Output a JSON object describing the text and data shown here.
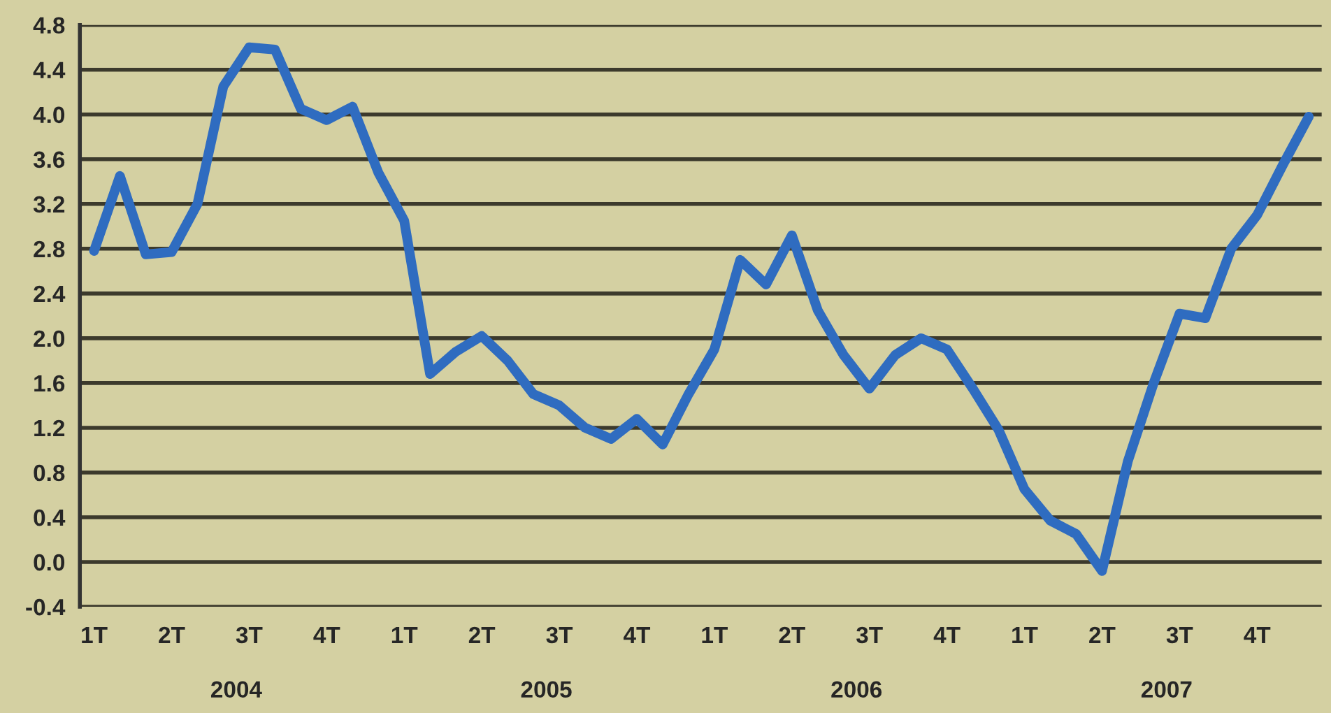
{
  "chart_data": {
    "type": "line",
    "categories": [
      "1T",
      null,
      null,
      "2T",
      null,
      null,
      "3T",
      null,
      null,
      "4T",
      null,
      null,
      "1T",
      null,
      null,
      "2T",
      null,
      null,
      "3T",
      null,
      null,
      "4T",
      null,
      null,
      "1T",
      null,
      null,
      "2T",
      null,
      null,
      "3T",
      null,
      null,
      "4T",
      null,
      null,
      "1T",
      null,
      null,
      "2T",
      null,
      null,
      "3T",
      null,
      null,
      "4T",
      null,
      null
    ],
    "series": [
      {
        "color": "#2f6cc0",
        "values": [
          2.78,
          3.45,
          2.75,
          2.77,
          3.2,
          4.25,
          4.6,
          4.58,
          4.05,
          3.95,
          4.07,
          3.48,
          3.05,
          1.68,
          1.88,
          2.02,
          1.8,
          1.5,
          1.4,
          1.2,
          1.1,
          1.28,
          1.05,
          1.5,
          1.9,
          2.7,
          2.48,
          2.92,
          2.25,
          1.85,
          1.55,
          1.85,
          2.0,
          1.9,
          1.55,
          1.18,
          0.65,
          0.37,
          0.25,
          -0.08,
          0.9,
          1.6,
          2.22,
          2.18,
          2.8,
          3.1,
          3.55,
          3.98
        ]
      }
    ],
    "ylim": [
      -0.4,
      4.8
    ],
    "yticks": [
      {
        "value": -0.4,
        "label": "-0.4"
      },
      {
        "value": 0,
        "label": "0.0"
      },
      0.4,
      0.8,
      1.2,
      1.6,
      {
        "value": 2,
        "label": "2.0"
      },
      2.4,
      2.8,
      3.2,
      3.6,
      {
        "value": 4,
        "label": "4.0"
      },
      4.4,
      4.8
    ],
    "grid": "y",
    "marker": "none",
    "line_style": "solid",
    "legend": false,
    "annotations": [
      "2004",
      "2005",
      "2006",
      "2007"
    ]
  }
}
